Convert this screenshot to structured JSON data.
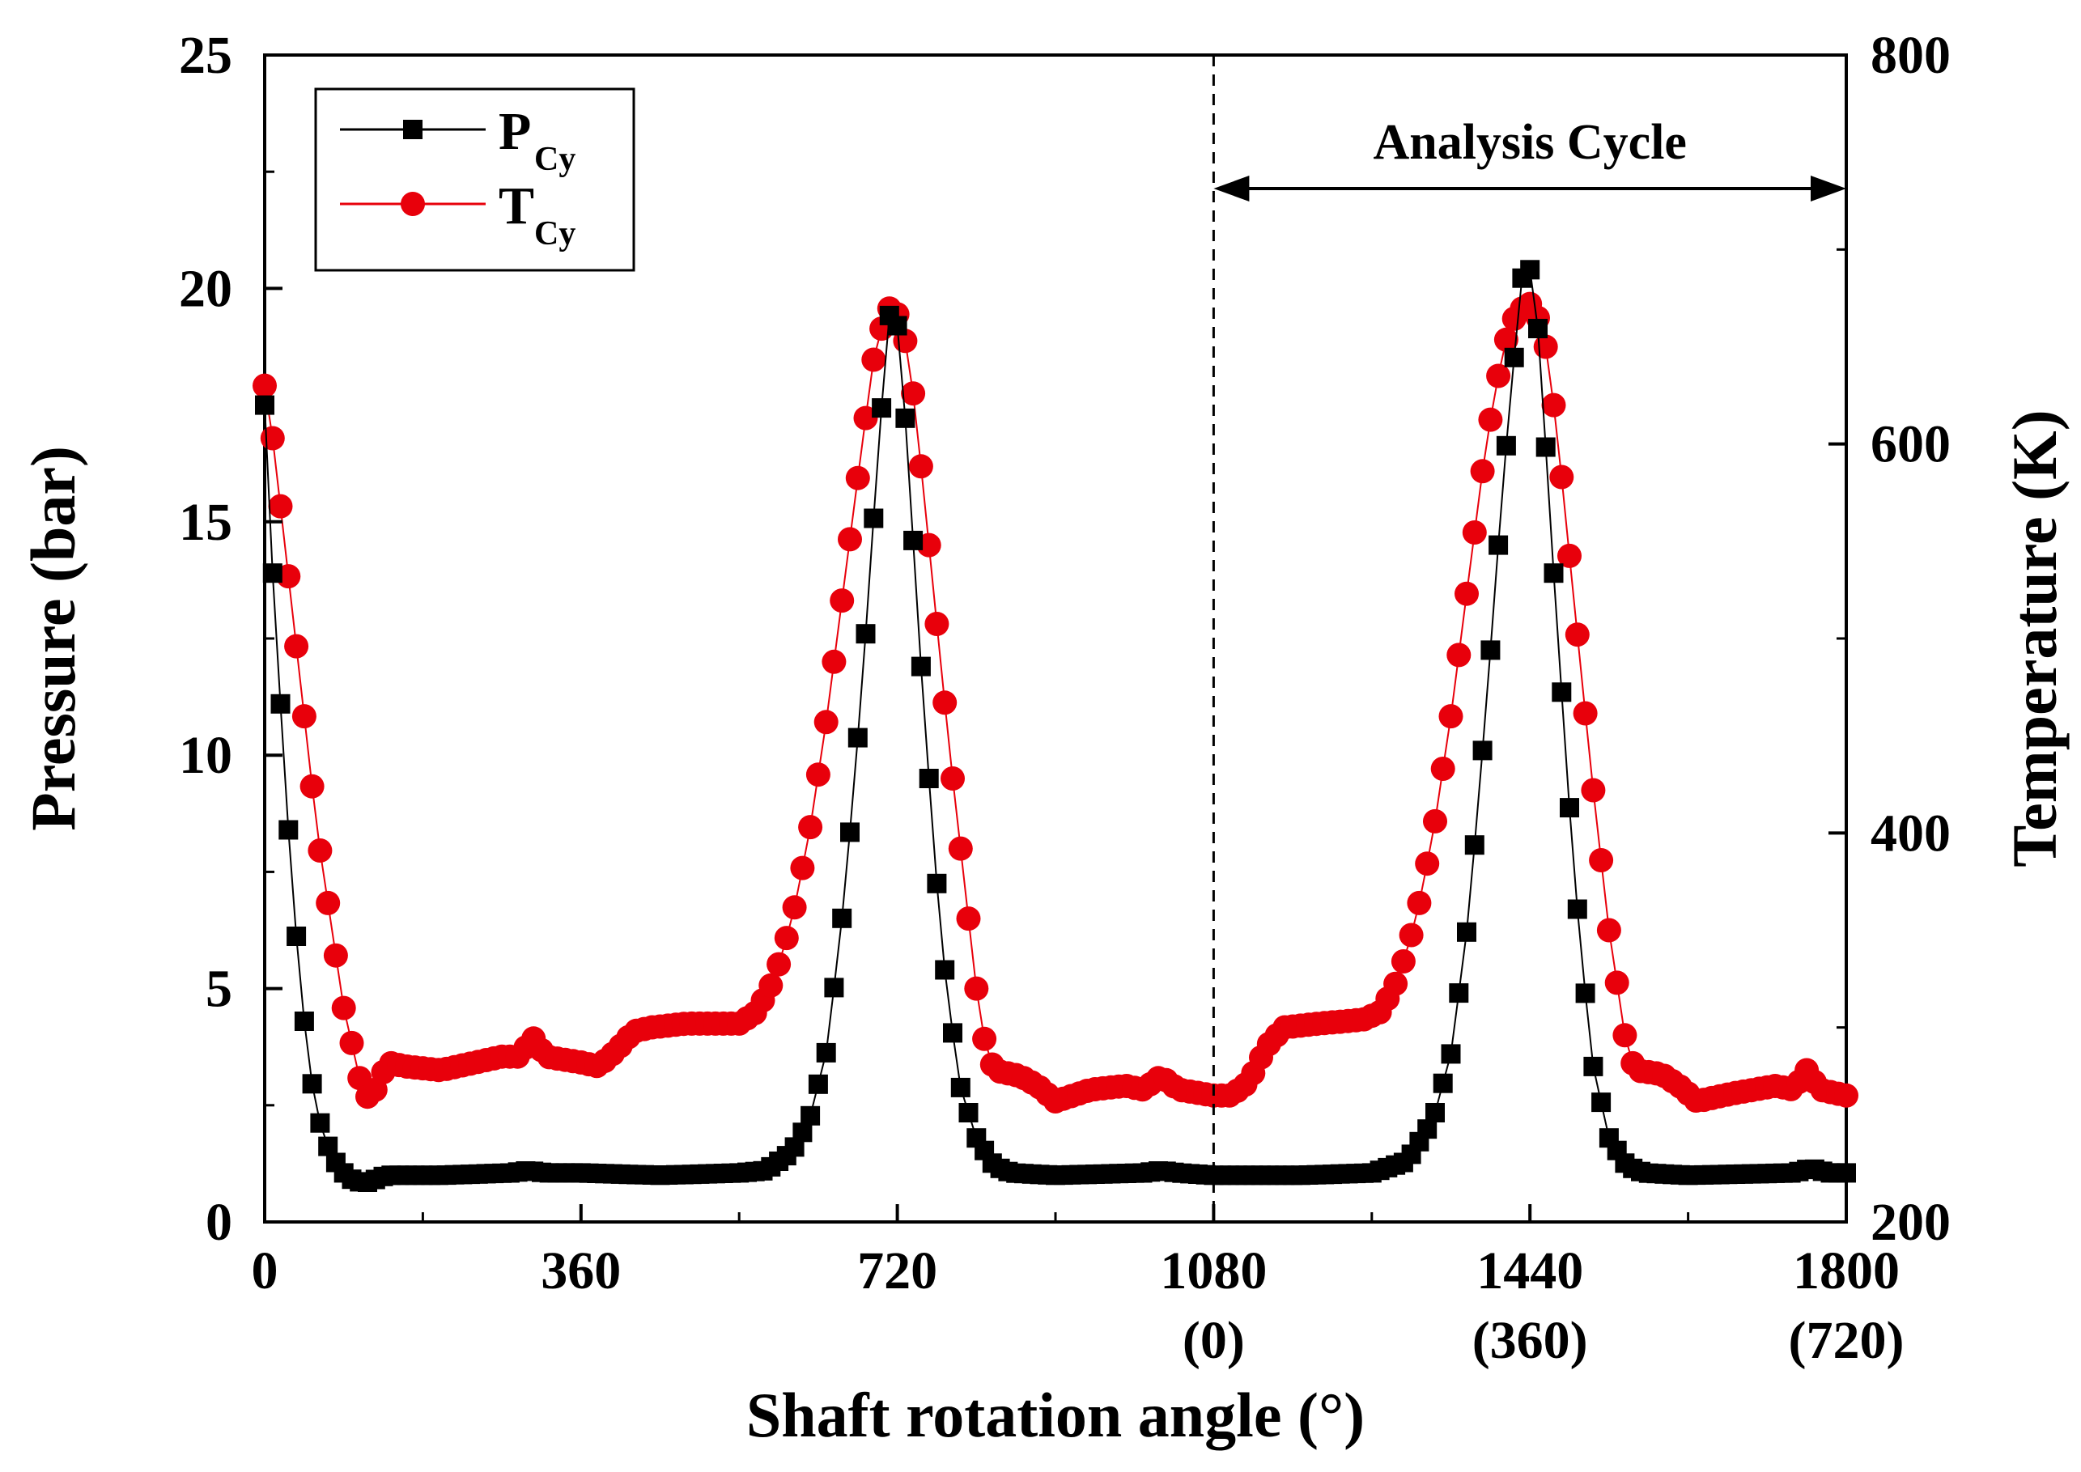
{
  "chart_data": {
    "type": "scatter",
    "xlabel": "Shaft rotation angle (°)",
    "ylabel_left": "Pressure (bar)",
    "ylabel_right": "Temperature (K)",
    "xlim": [
      0,
      1800
    ],
    "ylim_left": [
      0,
      25
    ],
    "ylim_right": [
      200,
      800
    ],
    "x_ticks": [
      {
        "value": 0,
        "label": "0",
        "sub": ""
      },
      {
        "value": 360,
        "label": "360",
        "sub": ""
      },
      {
        "value": 720,
        "label": "720",
        "sub": ""
      },
      {
        "value": 1080,
        "label": "1080",
        "sub": "(0)"
      },
      {
        "value": 1440,
        "label": "1440",
        "sub": "(360)"
      },
      {
        "value": 1800,
        "label": "1800",
        "sub": "(720)"
      }
    ],
    "y_left_ticks": [
      {
        "value": 0,
        "label": "0"
      },
      {
        "value": 5,
        "label": "5"
      },
      {
        "value": 10,
        "label": "10"
      },
      {
        "value": 15,
        "label": "15"
      },
      {
        "value": 20,
        "label": "20"
      },
      {
        "value": 25,
        "label": "25"
      }
    ],
    "y_right_ticks": [
      {
        "value": 200,
        "label": "200"
      },
      {
        "value": 400,
        "label": "400"
      },
      {
        "value": 600,
        "label": "600"
      },
      {
        "value": 800,
        "label": "800"
      }
    ],
    "legend": {
      "position": "top-left",
      "entries": [
        {
          "main": "P",
          "sub": "Cy",
          "series": "pressure"
        },
        {
          "main": "T",
          "sub": "Cy",
          "series": "temperature"
        }
      ]
    },
    "annotation": {
      "text": "Analysis Cycle",
      "divider_x": 1080,
      "arrow_from_x": 1080,
      "arrow_to_x": 1800
    },
    "series": [
      {
        "name": "pressure",
        "color": "#000000",
        "marker": "square",
        "axis": "left",
        "x_step": 9,
        "points": [
          [
            0,
            17.5
          ],
          [
            10,
            13.5
          ],
          [
            20,
            10.5
          ],
          [
            30,
            7.5
          ],
          [
            40,
            5.2
          ],
          [
            50,
            3.4
          ],
          [
            60,
            2.3
          ],
          [
            70,
            1.7
          ],
          [
            80,
            1.3
          ],
          [
            90,
            1.05
          ],
          [
            100,
            0.9
          ],
          [
            110,
            0.85
          ],
          [
            120,
            0.85
          ],
          [
            130,
            0.95
          ],
          [
            140,
            1.0
          ],
          [
            200,
            1.0
          ],
          [
            280,
            1.05
          ],
          [
            300,
            1.1
          ],
          [
            320,
            1.05
          ],
          [
            360,
            1.05
          ],
          [
            450,
            1.0
          ],
          [
            540,
            1.05
          ],
          [
            570,
            1.1
          ],
          [
            600,
            1.5
          ],
          [
            620,
            2.2
          ],
          [
            640,
            3.7
          ],
          [
            660,
            7.0
          ],
          [
            680,
            11.5
          ],
          [
            700,
            17.0
          ],
          [
            715,
            20.3
          ],
          [
            730,
            17.0
          ],
          [
            750,
            11.0
          ],
          [
            770,
            6.0
          ],
          [
            790,
            3.0
          ],
          [
            810,
            1.8
          ],
          [
            830,
            1.2
          ],
          [
            850,
            1.05
          ],
          [
            900,
            1.0
          ],
          [
            1000,
            1.05
          ],
          [
            1020,
            1.1
          ],
          [
            1040,
            1.05
          ],
          [
            1080,
            1.0
          ],
          [
            1180,
            1.0
          ],
          [
            1260,
            1.05
          ],
          [
            1300,
            1.3
          ],
          [
            1330,
            2.2
          ],
          [
            1350,
            3.6
          ],
          [
            1370,
            6.5
          ],
          [
            1390,
            11.0
          ],
          [
            1410,
            16.0
          ],
          [
            1430,
            20.2
          ],
          [
            1440,
            20.4
          ],
          [
            1450,
            19.0
          ],
          [
            1470,
            13.0
          ],
          [
            1490,
            7.5
          ],
          [
            1510,
            3.5
          ],
          [
            1530,
            1.8
          ],
          [
            1550,
            1.2
          ],
          [
            1570,
            1.05
          ],
          [
            1620,
            1.0
          ],
          [
            1740,
            1.05
          ],
          [
            1760,
            1.15
          ],
          [
            1780,
            1.05
          ],
          [
            1800,
            1.05
          ]
        ]
      },
      {
        "name": "temperature",
        "color": "#e8000b",
        "marker": "circle",
        "axis": "right",
        "x_step": 9,
        "points": [
          [
            0,
            630
          ],
          [
            10,
            600
          ],
          [
            20,
            560
          ],
          [
            30,
            520
          ],
          [
            40,
            480
          ],
          [
            50,
            440
          ],
          [
            60,
            400
          ],
          [
            70,
            370
          ],
          [
            80,
            340
          ],
          [
            90,
            310
          ],
          [
            100,
            290
          ],
          [
            110,
            270
          ],
          [
            120,
            262
          ],
          [
            130,
            272
          ],
          [
            140,
            282
          ],
          [
            160,
            280
          ],
          [
            200,
            278
          ],
          [
            240,
            282
          ],
          [
            270,
            285
          ],
          [
            290,
            285
          ],
          [
            305,
            295
          ],
          [
            320,
            285
          ],
          [
            360,
            282
          ],
          [
            380,
            280
          ],
          [
            400,
            288
          ],
          [
            420,
            298
          ],
          [
            440,
            300
          ],
          [
            480,
            302
          ],
          [
            540,
            302
          ],
          [
            560,
            308
          ],
          [
            580,
            325
          ],
          [
            600,
            355
          ],
          [
            620,
            400
          ],
          [
            640,
            460
          ],
          [
            660,
            530
          ],
          [
            680,
            600
          ],
          [
            695,
            650
          ],
          [
            710,
            670
          ],
          [
            725,
            665
          ],
          [
            740,
            620
          ],
          [
            760,
            530
          ],
          [
            780,
            440
          ],
          [
            800,
            360
          ],
          [
            815,
            300
          ],
          [
            830,
            278
          ],
          [
            860,
            275
          ],
          [
            880,
            270
          ],
          [
            900,
            262
          ],
          [
            940,
            268
          ],
          [
            980,
            270
          ],
          [
            1000,
            268
          ],
          [
            1020,
            275
          ],
          [
            1040,
            268
          ],
          [
            1080,
            265
          ],
          [
            1100,
            265
          ],
          [
            1120,
            272
          ],
          [
            1140,
            290
          ],
          [
            1160,
            300
          ],
          [
            1200,
            302
          ],
          [
            1250,
            304
          ],
          [
            1270,
            308
          ],
          [
            1290,
            325
          ],
          [
            1310,
            355
          ],
          [
            1330,
            400
          ],
          [
            1350,
            460
          ],
          [
            1370,
            530
          ],
          [
            1390,
            600
          ],
          [
            1410,
            650
          ],
          [
            1425,
            668
          ],
          [
            1440,
            672
          ],
          [
            1455,
            660
          ],
          [
            1470,
            610
          ],
          [
            1490,
            520
          ],
          [
            1510,
            430
          ],
          [
            1530,
            350
          ],
          [
            1550,
            290
          ],
          [
            1560,
            278
          ],
          [
            1590,
            276
          ],
          [
            1610,
            270
          ],
          [
            1630,
            262
          ],
          [
            1670,
            266
          ],
          [
            1720,
            270
          ],
          [
            1740,
            268
          ],
          [
            1755,
            278
          ],
          [
            1770,
            268
          ],
          [
            1800,
            265
          ]
        ]
      }
    ]
  }
}
